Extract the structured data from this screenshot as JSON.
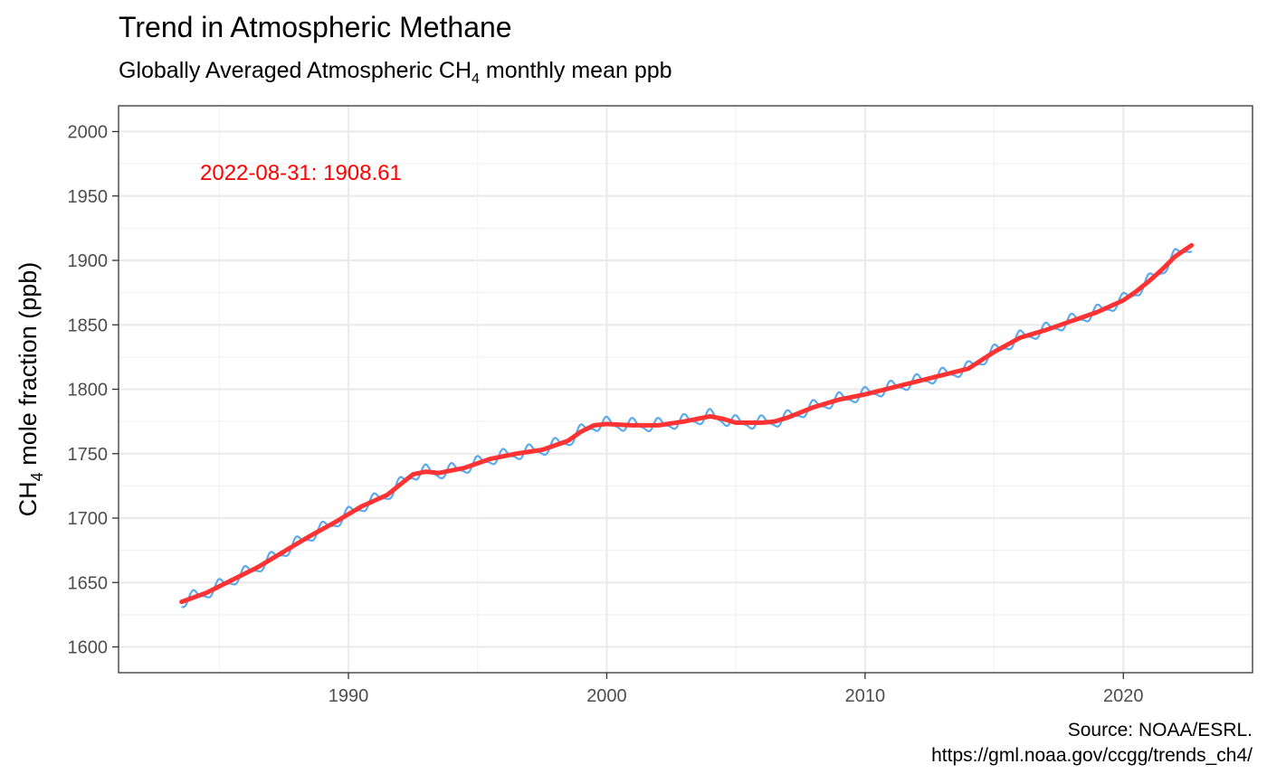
{
  "chart_data": {
    "type": "line",
    "title": "Trend in Atmospheric Methane",
    "subtitle_prefix": "Globally Averaged Atmospheric CH",
    "subtitle_sub": "4",
    "subtitle_suffix": " monthly mean ppb",
    "ylabel_prefix": "CH",
    "ylabel_sub": "4",
    "ylabel_suffix": " mole fraction (ppb)",
    "xlabel": "",
    "xlim": [
      1981.1,
      2025.0
    ],
    "ylim": [
      1580,
      2020
    ],
    "x_ticks": [
      1990,
      2000,
      2010,
      2020
    ],
    "y_ticks": [
      1600,
      1650,
      1700,
      1750,
      1800,
      1850,
      1900,
      1950,
      2000
    ],
    "grid": true,
    "annotation": "2022-08-31: 1908.61",
    "caption_line1": "Source: NOAA/ESRL.",
    "caption_line2": "https://gml.noaa.gov/ccgg/trends_ch4/",
    "series": [
      {
        "role": "monthly mean",
        "color": "#5aa9ec",
        "seasonal_amplitude_ppb": 4.5,
        "x_range": [
          1983.54,
          2022.66
        ]
      },
      {
        "role": "trend",
        "color": "#ff3333",
        "x": [
          1983.54,
          1984.5,
          1985.5,
          1986.5,
          1987.5,
          1988.5,
          1989.5,
          1990.5,
          1991.5,
          1992.0,
          1992.5,
          1993.0,
          1993.5,
          1994.5,
          1995.5,
          1996.5,
          1997.5,
          1998.5,
          1999.0,
          1999.5,
          2000.0,
          2001.0,
          2002.0,
          2003.0,
          2004.0,
          2004.5,
          2005.0,
          2005.5,
          2006.0,
          2006.5,
          2007.0,
          2008.0,
          2009.0,
          2010.0,
          2011.0,
          2012.0,
          2013.0,
          2014.0,
          2015.0,
          2016.0,
          2017.0,
          2018.0,
          2019.0,
          2020.0,
          2020.5,
          2021.0,
          2021.5,
          2022.0,
          2022.66
        ],
        "y": [
          1635,
          1642,
          1652,
          1662,
          1674,
          1686,
          1697,
          1709,
          1718,
          1726,
          1734,
          1736,
          1735,
          1739,
          1746,
          1750,
          1753,
          1760,
          1767,
          1772,
          1773,
          1772,
          1772,
          1775,
          1779,
          1777,
          1774,
          1774,
          1774,
          1775,
          1778,
          1786,
          1792,
          1796,
          1801,
          1806,
          1811,
          1816,
          1829,
          1840,
          1846,
          1853,
          1860,
          1869,
          1876,
          1884,
          1893,
          1903,
          1912
        ]
      }
    ]
  }
}
